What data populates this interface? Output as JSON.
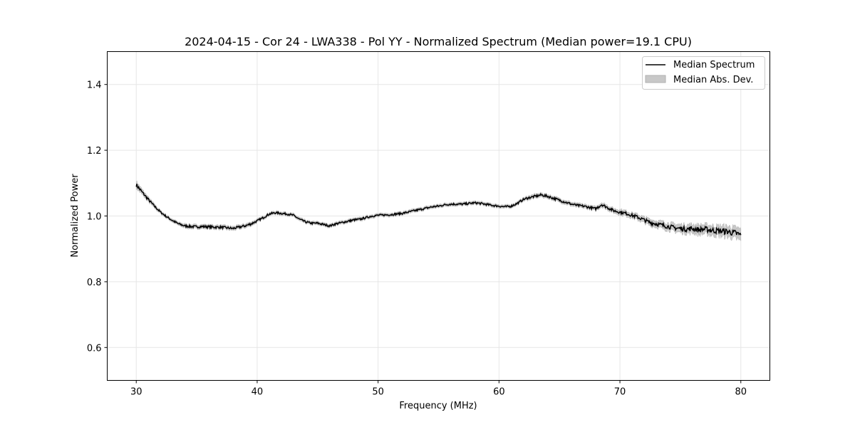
{
  "chart_data": {
    "type": "line",
    "title": "2024-04-15 - Cor 24 - LWA338 - Pol YY - Normalized Spectrum (Median power=19.1 CPU)",
    "xlabel": "Frequency (MHz)",
    "ylabel": "Normalized Power",
    "xlim": [
      27.6,
      82.4
    ],
    "ylim": [
      0.5,
      1.5
    ],
    "xticks": [
      30,
      40,
      50,
      60,
      70,
      80
    ],
    "yticks": [
      0.6,
      0.8,
      1.0,
      1.2,
      1.4
    ],
    "xtick_labels": [
      "30",
      "40",
      "50",
      "60",
      "70",
      "80"
    ],
    "ytick_labels": [
      "0.6",
      "0.8",
      "1.0",
      "1.2",
      "1.4"
    ],
    "grid": true,
    "legend_position": "top-right",
    "series": [
      {
        "name": "Median Spectrum",
        "color": "#000000",
        "x": [
          30,
          30.5,
          31,
          31.5,
          32,
          32.5,
          33,
          33.5,
          34,
          34.5,
          35,
          35.5,
          36,
          36.5,
          37,
          37.5,
          38,
          38.5,
          39,
          39.5,
          40,
          40.5,
          41,
          41.5,
          42,
          42.5,
          43,
          43.5,
          44,
          44.5,
          45,
          45.5,
          46,
          46.5,
          47,
          47.5,
          48,
          48.5,
          49,
          49.5,
          50,
          50.5,
          51,
          51.5,
          52,
          52.5,
          53,
          53.5,
          54,
          54.5,
          55,
          55.5,
          56,
          56.5,
          57,
          57.5,
          58,
          58.5,
          59,
          59.5,
          60,
          60.5,
          61,
          61.5,
          62,
          62.5,
          63,
          63.5,
          64,
          64.5,
          65,
          65.5,
          66,
          66.5,
          67,
          67.5,
          68,
          68.5,
          69,
          69.5,
          70,
          70.5,
          71,
          71.5,
          72,
          72.5,
          73,
          73.5,
          74,
          74.5,
          75,
          75.5,
          76,
          76.5,
          77,
          77.5,
          78,
          78.5,
          79,
          79.5,
          80
        ],
        "values": [
          1.095,
          1.072,
          1.05,
          1.03,
          1.012,
          0.998,
          0.986,
          0.976,
          0.97,
          0.968,
          0.967,
          0.968,
          0.967,
          0.966,
          0.966,
          0.964,
          0.962,
          0.966,
          0.97,
          0.976,
          0.985,
          0.995,
          1.006,
          1.01,
          1.008,
          1.006,
          1.002,
          0.99,
          0.982,
          0.978,
          0.978,
          0.974,
          0.97,
          0.976,
          0.98,
          0.984,
          0.988,
          0.99,
          0.995,
          1.0,
          1.002,
          1.003,
          1.004,
          1.006,
          1.008,
          1.012,
          1.016,
          1.02,
          1.024,
          1.028,
          1.03,
          1.034,
          1.036,
          1.036,
          1.036,
          1.038,
          1.04,
          1.038,
          1.035,
          1.032,
          1.03,
          1.028,
          1.03,
          1.038,
          1.05,
          1.056,
          1.06,
          1.064,
          1.06,
          1.054,
          1.048,
          1.042,
          1.036,
          1.032,
          1.03,
          1.026,
          1.022,
          1.035,
          1.025,
          1.016,
          1.012,
          1.008,
          1.002,
          0.996,
          0.988,
          0.98,
          0.976,
          0.972,
          0.968,
          0.964,
          0.962,
          0.96,
          0.962,
          0.958,
          0.96,
          0.957,
          0.955,
          0.954,
          0.952,
          0.948,
          0.942
        ]
      }
    ],
    "band": {
      "name": "Median Abs. Dev.",
      "color": "#c8c8c8",
      "deviation": [
        0.01,
        0.008,
        0.007,
        0.006,
        0.005,
        0.005,
        0.005,
        0.005,
        0.006,
        0.006,
        0.006,
        0.006,
        0.006,
        0.006,
        0.006,
        0.006,
        0.006,
        0.006,
        0.006,
        0.006,
        0.005,
        0.005,
        0.005,
        0.005,
        0.005,
        0.005,
        0.005,
        0.005,
        0.005,
        0.005,
        0.005,
        0.005,
        0.005,
        0.005,
        0.005,
        0.005,
        0.005,
        0.005,
        0.005,
        0.005,
        0.005,
        0.005,
        0.005,
        0.005,
        0.005,
        0.005,
        0.005,
        0.005,
        0.005,
        0.005,
        0.005,
        0.005,
        0.005,
        0.005,
        0.005,
        0.005,
        0.005,
        0.005,
        0.005,
        0.005,
        0.005,
        0.005,
        0.005,
        0.005,
        0.005,
        0.006,
        0.006,
        0.006,
        0.006,
        0.006,
        0.006,
        0.006,
        0.006,
        0.006,
        0.006,
        0.006,
        0.006,
        0.007,
        0.007,
        0.007,
        0.008,
        0.008,
        0.008,
        0.009,
        0.009,
        0.01,
        0.01,
        0.011,
        0.011,
        0.012,
        0.012,
        0.013,
        0.013,
        0.014,
        0.014,
        0.015,
        0.015,
        0.016,
        0.016,
        0.017,
        0.018
      ]
    }
  }
}
